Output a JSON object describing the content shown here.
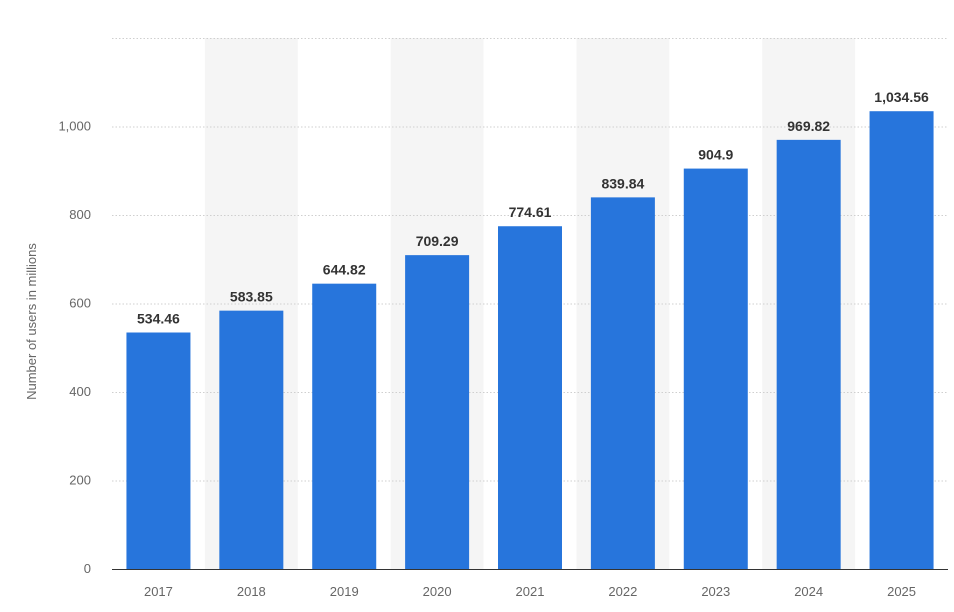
{
  "chart_data": {
    "type": "bar",
    "categories": [
      "2017",
      "2018",
      "2019",
      "2020",
      "2021",
      "2022",
      "2023",
      "2024",
      "2025"
    ],
    "values": [
      534.46,
      583.85,
      644.82,
      709.29,
      774.61,
      839.84,
      904.9,
      969.82,
      1034.56
    ],
    "value_labels": [
      "534.46",
      "583.85",
      "644.82",
      "709.29",
      "774.61",
      "839.84",
      "904.9",
      "969.82",
      "1,034.56"
    ],
    "ylabel": "Number of users in millions",
    "xlabel": "",
    "ylim": [
      0,
      1200
    ],
    "yticks": [
      0,
      200,
      400,
      600,
      800,
      1000
    ],
    "ytick_labels": [
      "0",
      "200",
      "400",
      "600",
      "800",
      "1,000"
    ],
    "grid": true,
    "legend": false,
    "colors": {
      "bar": "#2775DC",
      "band": "#F5F5F5",
      "grid": "#CFCFCF",
      "axis": "#333333"
    }
  }
}
